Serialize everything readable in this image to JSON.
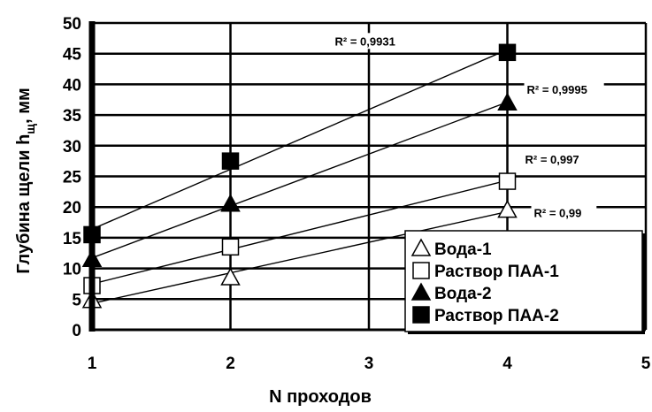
{
  "chart_data": {
    "type": "scatter",
    "title": "",
    "xlabel": "N проходов",
    "ylabel": {
      "main": "Глубина щели h",
      "subscript": "щ",
      "suffix": ", мм"
    },
    "xlim": [
      1,
      5
    ],
    "ylim": [
      0,
      50
    ],
    "x_ticks": [
      "1",
      "2",
      "3",
      "4",
      "5"
    ],
    "y_ticks": [
      "0",
      "5",
      "10",
      "15",
      "20",
      "25",
      "30",
      "35",
      "40",
      "45",
      "50"
    ],
    "grid": true,
    "legend_position": "bottom-right",
    "trendlines": "linear",
    "series": [
      {
        "name": "Вода-1",
        "marker": "triangle-open",
        "x": [
          1,
          2,
          4
        ],
        "y": [
          4.8,
          8.5,
          19.5
        ],
        "r2_text": "R² = 0,99"
      },
      {
        "name": "Раствор ПАА-1",
        "marker": "square-open",
        "x": [
          1,
          2,
          4
        ],
        "y": [
          7.2,
          13.5,
          24.2
        ],
        "r2_text": "R² = 0,997"
      },
      {
        "name": "Вода-2",
        "marker": "triangle-filled",
        "x": [
          1,
          2,
          4
        ],
        "y": [
          11.5,
          20.5,
          37
        ],
        "r2_text": "R² = 0,9995"
      },
      {
        "name": "Раствор ПАА-2",
        "marker": "square-filled",
        "x": [
          1,
          2,
          4
        ],
        "y": [
          15.5,
          27.5,
          45.2
        ],
        "r2_text": "R² = 0,9931"
      }
    ]
  }
}
